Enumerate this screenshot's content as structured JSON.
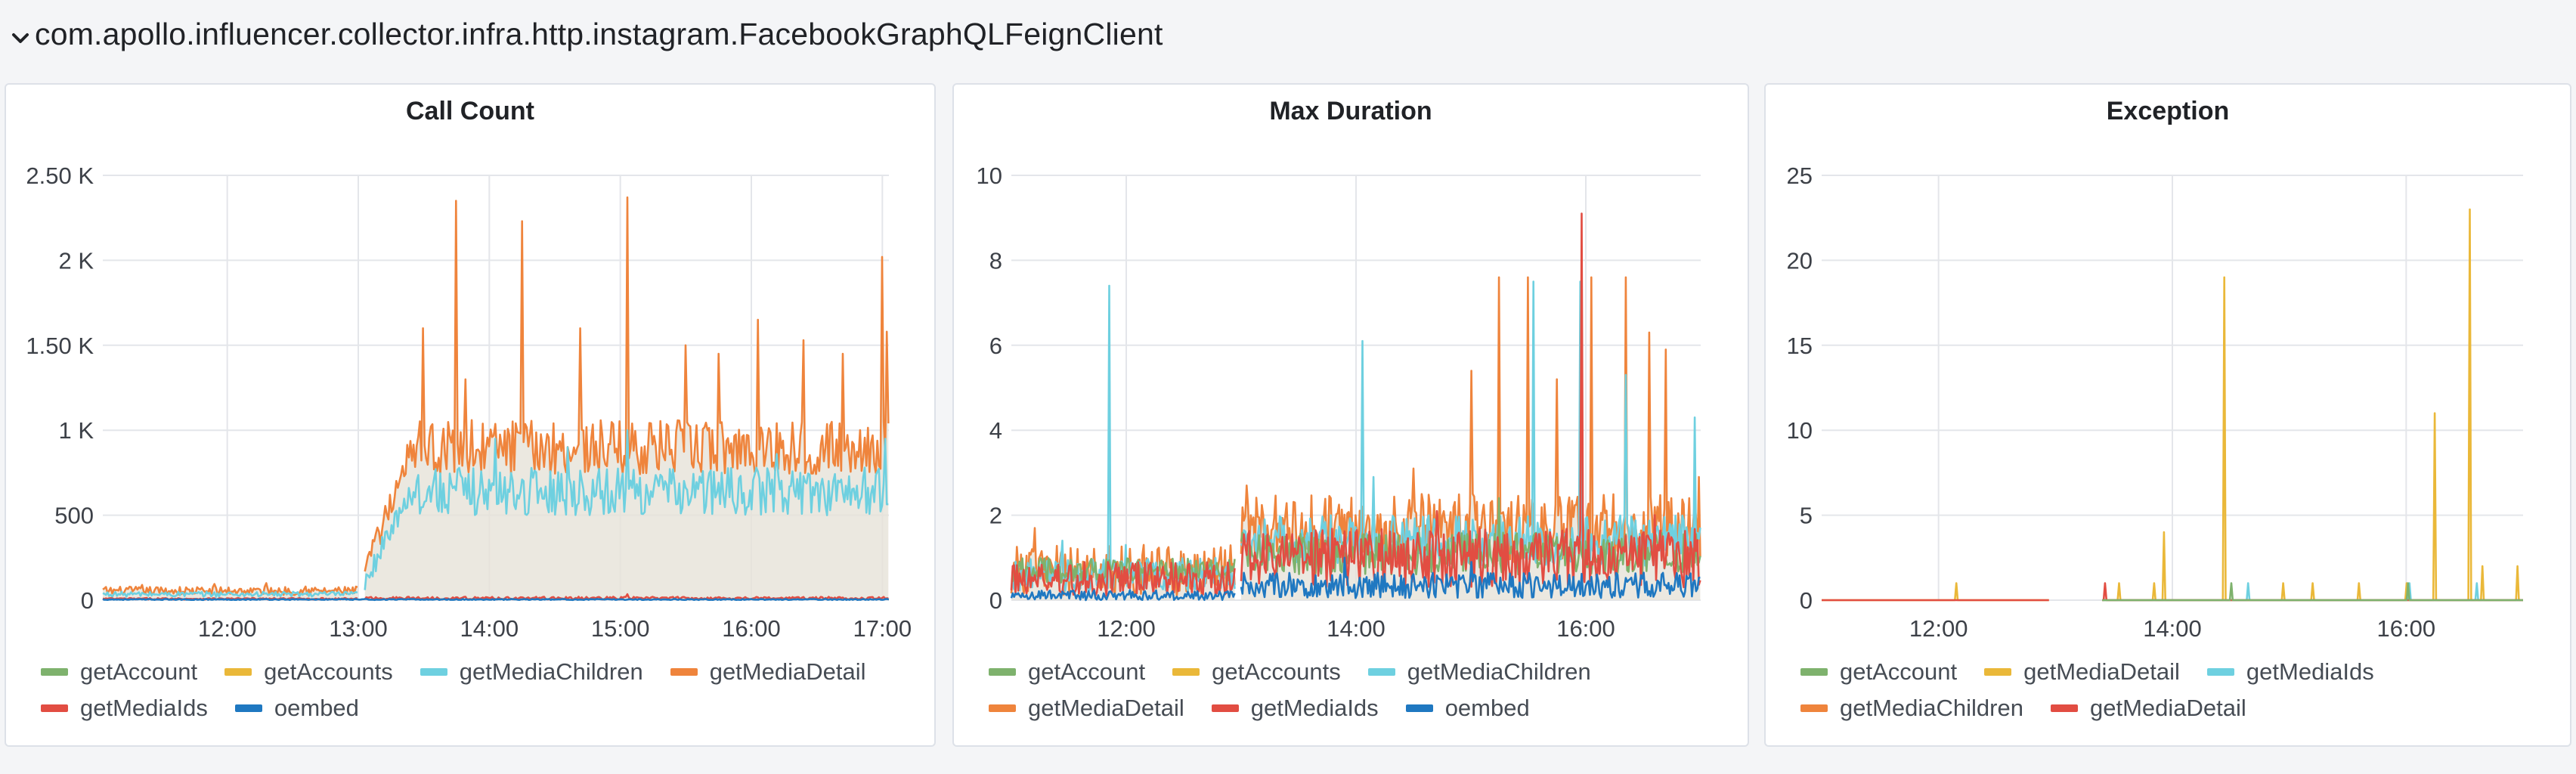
{
  "row": {
    "title": "com.apollo.influencer.collector.infra.http.instagram.FacebookGraphQLFeignClient"
  },
  "colors": {
    "getAccount": "#7eb26d",
    "getAccounts": "#eab839",
    "getMediaChildren": "#6ed0e0",
    "getMediaDetail": "#ef843c",
    "getMediaIds": "#e24d42",
    "oembed": "#1f78c1",
    "fill": "#e6e2d8"
  },
  "panels": [
    {
      "title": "Call Count",
      "legend": [
        {
          "label": "getAccount",
          "color": "#7eb26d"
        },
        {
          "label": "getAccounts",
          "color": "#eab839"
        },
        {
          "label": "getMediaChildren",
          "color": "#6ed0e0"
        },
        {
          "label": "getMediaDetail",
          "color": "#ef843c"
        },
        {
          "label": "getMediaIds",
          "color": "#e24d42"
        },
        {
          "label": "oembed",
          "color": "#1f78c1"
        }
      ]
    },
    {
      "title": "Max Duration",
      "legend": [
        {
          "label": "getAccount",
          "color": "#7eb26d"
        },
        {
          "label": "getAccounts",
          "color": "#eab839"
        },
        {
          "label": "getMediaChildren",
          "color": "#6ed0e0"
        },
        {
          "label": "getMediaDetail",
          "color": "#ef843c"
        },
        {
          "label": "getMediaIds",
          "color": "#e24d42"
        },
        {
          "label": "oembed",
          "color": "#1f78c1"
        }
      ]
    },
    {
      "title": "Exception",
      "legend": [
        {
          "label": "getAccount",
          "color": "#7eb26d"
        },
        {
          "label": "getMediaDetail",
          "color": "#eab839"
        },
        {
          "label": "getMediaIds",
          "color": "#6ed0e0"
        },
        {
          "label": "getMediaChildren",
          "color": "#ef843c"
        },
        {
          "label": "getMediaDetail",
          "color": "#e24d42"
        }
      ]
    }
  ],
  "chart_data": [
    {
      "type": "line",
      "title": "Call Count",
      "ylim": [
        0,
        2500
      ],
      "yticks": [
        0,
        500,
        1000,
        1500,
        2000,
        2500
      ],
      "ytick_labels": [
        "0",
        "500",
        "1 K",
        "1.50 K",
        "2 K",
        "2.50 K"
      ],
      "xlim": [
        11.05,
        17.05
      ],
      "xticks": [
        12,
        13,
        14,
        15,
        16,
        17
      ],
      "xtick_labels": [
        "12:00",
        "13:00",
        "14:00",
        "15:00",
        "16:00",
        "17:00"
      ],
      "series": [
        {
          "name": "getMediaDetail",
          "color": "#ef843c",
          "fill": true,
          "gap": [
            13.0,
            13.05
          ],
          "segments": [
            {
              "from": 11.05,
              "to": 13.0,
              "base": 55,
              "noise": 25,
              "spikes": [
                [
                  11.35,
                  90
                ],
                [
                  11.9,
                  95
                ],
                [
                  12.3,
                  100
                ],
                [
                  12.6,
                  80
                ]
              ]
            },
            {
              "from": 13.05,
              "to": 17.05,
              "base": 900,
              "noise": 160,
              "ramp": [
                13.05,
                13.4,
                150
              ],
              "spikes": [
                [
                  13.5,
                  1600
                ],
                [
                  13.75,
                  2350
                ],
                [
                  13.82,
                  1300
                ],
                [
                  14.25,
                  2230
                ],
                [
                  14.7,
                  1600
                ],
                [
                  15.05,
                  2370
                ],
                [
                  15.5,
                  1500
                ],
                [
                  15.75,
                  1450
                ],
                [
                  16.05,
                  1650
                ],
                [
                  16.4,
                  1530
                ],
                [
                  16.7,
                  1450
                ],
                [
                  17.0,
                  2020
                ],
                [
                  17.03,
                  1580
                ]
              ]
            }
          ]
        },
        {
          "name": "getMediaChildren",
          "color": "#6ed0e0",
          "fill": false,
          "segments": [
            {
              "from": 11.05,
              "to": 13.0,
              "base": 35,
              "noise": 15,
              "spikes": []
            },
            {
              "from": 13.05,
              "to": 17.05,
              "base": 640,
              "noise": 140,
              "ramp": [
                13.05,
                13.4,
                100
              ],
              "spikes": [
                [
                  14.05,
                  950
                ],
                [
                  14.6,
                  900
                ],
                [
                  15.05,
                  1000
                ],
                [
                  16.2,
                  860
                ],
                [
                  17.02,
                  950
                ]
              ]
            }
          ]
        },
        {
          "name": "getMediaIds",
          "color": "#e24d42",
          "fill": false,
          "segments": [
            {
              "from": 11.05,
              "to": 13.0,
              "base": 8,
              "noise": 5,
              "spikes": []
            },
            {
              "from": 13.05,
              "to": 17.05,
              "base": 12,
              "noise": 8,
              "spikes": [
                [
                  15.05,
                  35
                ]
              ]
            }
          ]
        },
        {
          "name": "oembed",
          "color": "#1f78c1",
          "fill": false,
          "segments": [
            {
              "from": 11.05,
              "to": 17.05,
              "base": 4,
              "noise": 3,
              "spikes": []
            }
          ]
        }
      ]
    },
    {
      "type": "line",
      "title": "Max Duration",
      "ylim": [
        0,
        10
      ],
      "yticks": [
        0,
        2,
        4,
        6,
        8,
        10
      ],
      "ytick_labels": [
        "0",
        "2",
        "4",
        "6",
        "8",
        "10"
      ],
      "xlim": [
        11.0,
        17.0
      ],
      "xticks": [
        12,
        14,
        16
      ],
      "xtick_labels": [
        "12:00",
        "14:00",
        "16:00"
      ],
      "series": [
        {
          "name": "getMediaDetail",
          "color": "#ef843c",
          "fill": true,
          "segments": [
            {
              "from": 11.0,
              "to": 12.95,
              "base": 0.7,
              "noise": 0.6,
              "spikes": [
                [
                  11.2,
                  1.7
                ],
                [
                  12.15,
                  1.3
                ]
              ]
            },
            {
              "from": 13.0,
              "to": 17.0,
              "base": 1.7,
              "noise": 0.8,
              "spikes": [
                [
                  13.05,
                  2.7
                ],
                [
                  14.5,
                  3.1
                ],
                [
                  15.0,
                  5.4
                ],
                [
                  15.5,
                  7.6
                ],
                [
                  15.25,
                  7.6
                ],
                [
                  15.75,
                  5.2
                ],
                [
                  16.05,
                  7.6
                ],
                [
                  16.35,
                  7.6
                ],
                [
                  16.55,
                  6.3
                ],
                [
                  16.7,
                  5.9
                ],
                [
                  16.9,
                  2.4
                ],
                [
                  16.99,
                  2.9
                ]
              ]
            }
          ]
        },
        {
          "name": "getMediaChildren",
          "color": "#6ed0e0",
          "fill": false,
          "segments": [
            {
              "from": 11.0,
              "to": 12.95,
              "base": 0.6,
              "noise": 0.4,
              "spikes": [
                [
                  11.85,
                  7.4
                ],
                [
                  11.45,
                  1.4
                ],
                [
                  12.0,
                  1.3
                ]
              ]
            },
            {
              "from": 13.0,
              "to": 17.0,
              "base": 1.4,
              "noise": 0.6,
              "spikes": [
                [
                  14.06,
                  6.1
                ],
                [
                  14.15,
                  2.9
                ],
                [
                  15.55,
                  7.5
                ],
                [
                  15.95,
                  7.5
                ],
                [
                  16.35,
                  5.3
                ],
                [
                  16.95,
                  4.3
                ]
              ]
            }
          ]
        },
        {
          "name": "getAccount",
          "color": "#7eb26d",
          "fill": false,
          "segments": [
            {
              "from": 11.0,
              "to": 12.95,
              "base": 0.7,
              "noise": 0.3,
              "spikes": []
            },
            {
              "from": 13.0,
              "to": 17.0,
              "base": 1.1,
              "noise": 0.5,
              "spikes": [
                [
                  15.25,
                  2.4
                ]
              ]
            }
          ]
        },
        {
          "name": "getMediaIds",
          "color": "#e24d42",
          "fill": false,
          "segments": [
            {
              "from": 11.0,
              "to": 12.95,
              "base": 0.5,
              "noise": 0.4,
              "spikes": []
            },
            {
              "from": 13.0,
              "to": 17.0,
              "base": 1.0,
              "noise": 0.7,
              "spikes": [
                [
                  15.96,
                  9.1
                ],
                [
                  14.7,
                  2.1
                ],
                [
                  16.6,
                  2.0
                ]
              ]
            }
          ]
        },
        {
          "name": "oembed",
          "color": "#1f78c1",
          "fill": false,
          "segments": [
            {
              "from": 11.0,
              "to": 12.95,
              "base": 0.12,
              "noise": 0.12,
              "spikes": []
            },
            {
              "from": 13.0,
              "to": 17.0,
              "base": 0.35,
              "noise": 0.3,
              "spikes": [
                [
                  13.9,
                  1.0
                ],
                [
                  15.0,
                  0.9
                ]
              ]
            }
          ]
        }
      ]
    },
    {
      "type": "line",
      "title": "Exception",
      "ylim": [
        0,
        25
      ],
      "yticks": [
        0,
        5,
        10,
        15,
        20,
        25
      ],
      "ytick_labels": [
        "0",
        "5",
        "10",
        "15",
        "20",
        "25"
      ],
      "xlim": [
        11.0,
        17.0
      ],
      "xticks": [
        12,
        14,
        16
      ],
      "xtick_labels": [
        "12:00",
        "14:00",
        "16:00"
      ],
      "series": [
        {
          "name": "getMediaDetail",
          "color": "#eab839",
          "fill": false,
          "segments": [
            {
              "from": 11.0,
              "to": 12.95,
              "base": 0,
              "noise": 0,
              "spikes": [
                [
                  12.15,
                  1
                ]
              ]
            },
            {
              "from": 13.4,
              "to": 17.0,
              "base": 0,
              "noise": 0,
              "spikes": [
                [
                  13.55,
                  1
                ],
                [
                  13.85,
                  1
                ],
                [
                  13.93,
                  4
                ],
                [
                  14.45,
                  19
                ],
                [
                  14.95,
                  1
                ],
                [
                  15.2,
                  1
                ],
                [
                  15.6,
                  1
                ],
                [
                  16.0,
                  1
                ],
                [
                  16.25,
                  11
                ],
                [
                  16.55,
                  23
                ],
                [
                  16.65,
                  2
                ],
                [
                  16.95,
                  2
                ]
              ]
            }
          ]
        },
        {
          "name": "getMediaIds",
          "color": "#6ed0e0",
          "fill": false,
          "segments": [
            {
              "from": 13.4,
              "to": 17.0,
              "base": 0,
              "noise": 0,
              "spikes": [
                [
                  14.65,
                  1
                ],
                [
                  16.03,
                  1
                ],
                [
                  16.6,
                  1
                ]
              ]
            }
          ]
        },
        {
          "name": "getMediaDetail",
          "color": "#e24d42",
          "fill": false,
          "segments": [
            {
              "from": 11.0,
              "to": 12.95,
              "base": 0,
              "noise": 0,
              "spikes": []
            },
            {
              "from": 13.4,
              "to": 17.0,
              "base": 0,
              "noise": 0,
              "spikes": [
                [
                  13.42,
                  1
                ]
              ]
            }
          ]
        },
        {
          "name": "getAccount",
          "color": "#7eb26d",
          "fill": false,
          "segments": [
            {
              "from": 13.4,
              "to": 17.0,
              "base": 0,
              "noise": 0,
              "spikes": [
                [
                  14.5,
                  1
                ],
                [
                  16.02,
                  1
                ]
              ]
            }
          ]
        }
      ]
    }
  ]
}
